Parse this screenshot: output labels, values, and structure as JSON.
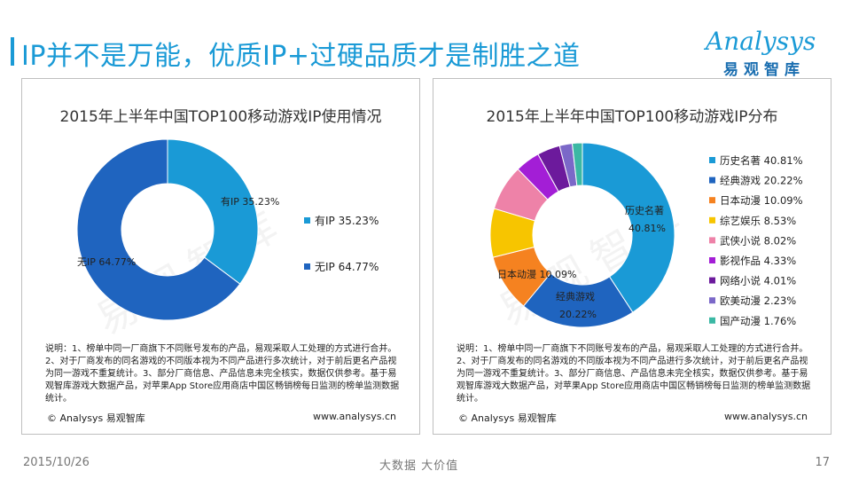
{
  "header": {
    "title": "IP并不是万能，优质IP+过硬品质才是制胜之道",
    "logo_word": "Analysys",
    "logo_cn": "易观智库"
  },
  "left_panel": {
    "note": "说明：1、榜单中同一厂商旗下不同账号发布的产品，易观采取人工处理的方式进行合并。2、对于厂商发布的同名游戏的不同版本视为不同产品进行多次统计，对于前后更名产品视为同一游戏不重复统计。3、部分厂商信息、产品信息未完全核实，数据仅供参考。基于易观智库游戏大数据产品，对苹果App Store应用商店中国区畅销榜每日监测的榜单监测数据统计。",
    "copyright": "© Analysys 易观智库",
    "website": "www.analysys.cn"
  },
  "right_panel": {
    "note": "说明：1、榜单中同一厂商旗下不同账号发布的产品，易观采取人工处理的方式进行合并。2、对于厂商发布的同名游戏的不同版本视为不同产品进行多次统计，对于前后更名产品视为同一游戏不重复统计。3、部分厂商信息、产品信息未完全核实，数据仅供参考。基于易观智库游戏大数据产品，对苹果App Store应用商店中国区畅销榜每日监测的榜单监测数据统计。",
    "copyright": "© Analysys 易观智库",
    "website": "www.analysys.cn"
  },
  "footer": {
    "date": "2015/10/26",
    "slogan": "大数据  大价值",
    "page_number": "17"
  },
  "watermark": "易观智库",
  "chart_data": [
    {
      "type": "pie",
      "style": "donut",
      "title": "2015年上半年中国TOP100移动游戏IP使用情况",
      "legend_position": "right",
      "series": [
        {
          "name": "有IP",
          "value": 35.23,
          "label": "有IP 35.23%",
          "color": "#1a9ad6"
        },
        {
          "name": "无IP",
          "value": 64.77,
          "label": "无IP 64.77%",
          "color": "#1f64bf"
        }
      ]
    },
    {
      "type": "pie",
      "style": "donut",
      "title": "2015年上半年中国TOP100移动游戏IP分布",
      "legend_position": "right",
      "series": [
        {
          "name": "历史名著",
          "value": 40.81,
          "label": "历史名著 40.81%",
          "color": "#1a9ad6"
        },
        {
          "name": "经典游戏",
          "value": 20.22,
          "label": "经典游戏 20.22%",
          "color": "#1f64bf"
        },
        {
          "name": "日本动漫",
          "value": 10.09,
          "label": "日本动漫 10.09%",
          "color": "#f58220"
        },
        {
          "name": "综艺娱乐",
          "value": 8.53,
          "label": "综艺娱乐 8.53%",
          "color": "#f7c500"
        },
        {
          "name": "武侠小说",
          "value": 8.02,
          "label": "武侠小说 8.02%",
          "color": "#ee82a8"
        },
        {
          "name": "影视作品",
          "value": 4.33,
          "label": "影视作品 4.33%",
          "color": "#a31ed6"
        },
        {
          "name": "网络小说",
          "value": 4.01,
          "label": "网络小说 4.01%",
          "color": "#6c1a9c"
        },
        {
          "name": "欧美动漫",
          "value": 2.23,
          "label": "欧美动漫 2.23%",
          "color": "#7b68c8"
        },
        {
          "name": "国产动漫",
          "value": 1.76,
          "label": "国产动漫 1.76%",
          "color": "#3bb8a4"
        }
      ]
    }
  ]
}
